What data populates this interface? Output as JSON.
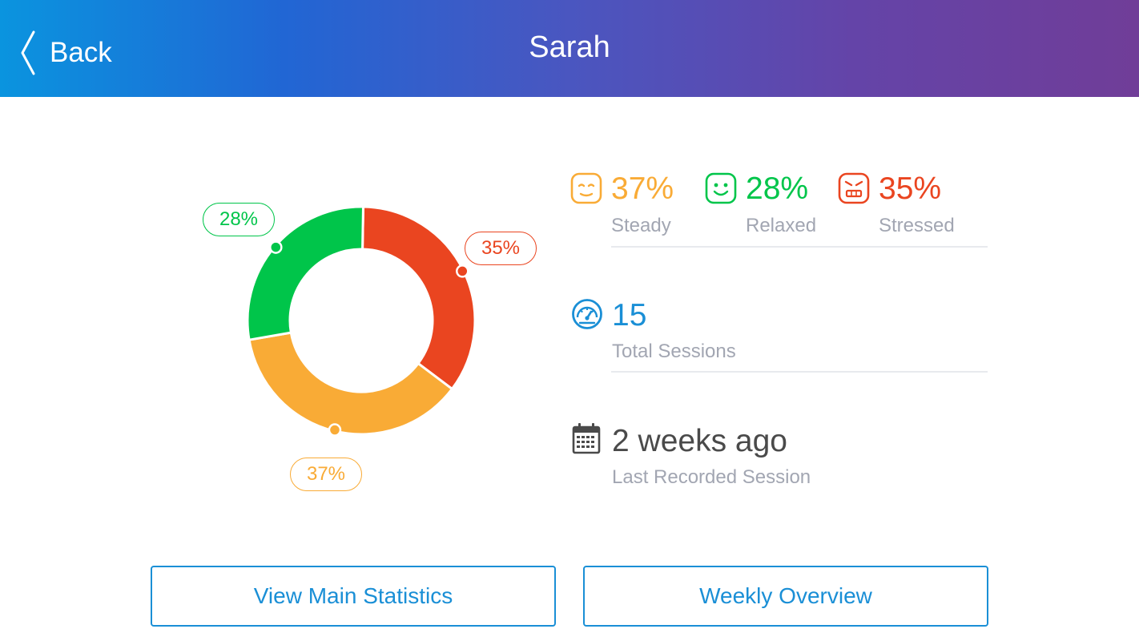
{
  "header": {
    "back_label": "Back",
    "title": "Sarah",
    "gradient_start": "#0a94df",
    "gradient_end": "#703d98"
  },
  "colors": {
    "steady": "#f9ab36",
    "relaxed": "#00c54a",
    "stressed": "#ea4520",
    "accent": "#1a8fd6",
    "muted": "#a2a6b2",
    "dark_text": "#4a4a4a"
  },
  "chart_data": {
    "type": "pie",
    "style": "donut",
    "title": "",
    "series": [
      {
        "name": "Stressed",
        "value": 35,
        "label": "35%",
        "color": "#ea4520"
      },
      {
        "name": "Steady",
        "value": 37,
        "label": "37%",
        "color": "#f9ab36"
      },
      {
        "name": "Relaxed",
        "value": 28,
        "label": "28%",
        "color": "#00c54a"
      }
    ]
  },
  "moods": [
    {
      "key": "steady",
      "percent": "37%",
      "label": "Steady",
      "icon": "steady-face-icon",
      "color": "#f9ab36"
    },
    {
      "key": "relaxed",
      "percent": "28%",
      "label": "Relaxed",
      "icon": "relaxed-face-icon",
      "color": "#00c54a"
    },
    {
      "key": "stressed",
      "percent": "35%",
      "label": "Stressed",
      "icon": "stressed-face-icon",
      "color": "#ea4520"
    }
  ],
  "sessions": {
    "count": "15",
    "label": "Total Sessions",
    "icon": "speedometer-icon"
  },
  "last_session": {
    "value": "2 weeks ago",
    "label": "Last Recorded Session",
    "icon": "calendar-icon"
  },
  "buttons": {
    "main_statistics": "View Main Statistics",
    "weekly_overview": "Weekly Overview"
  }
}
